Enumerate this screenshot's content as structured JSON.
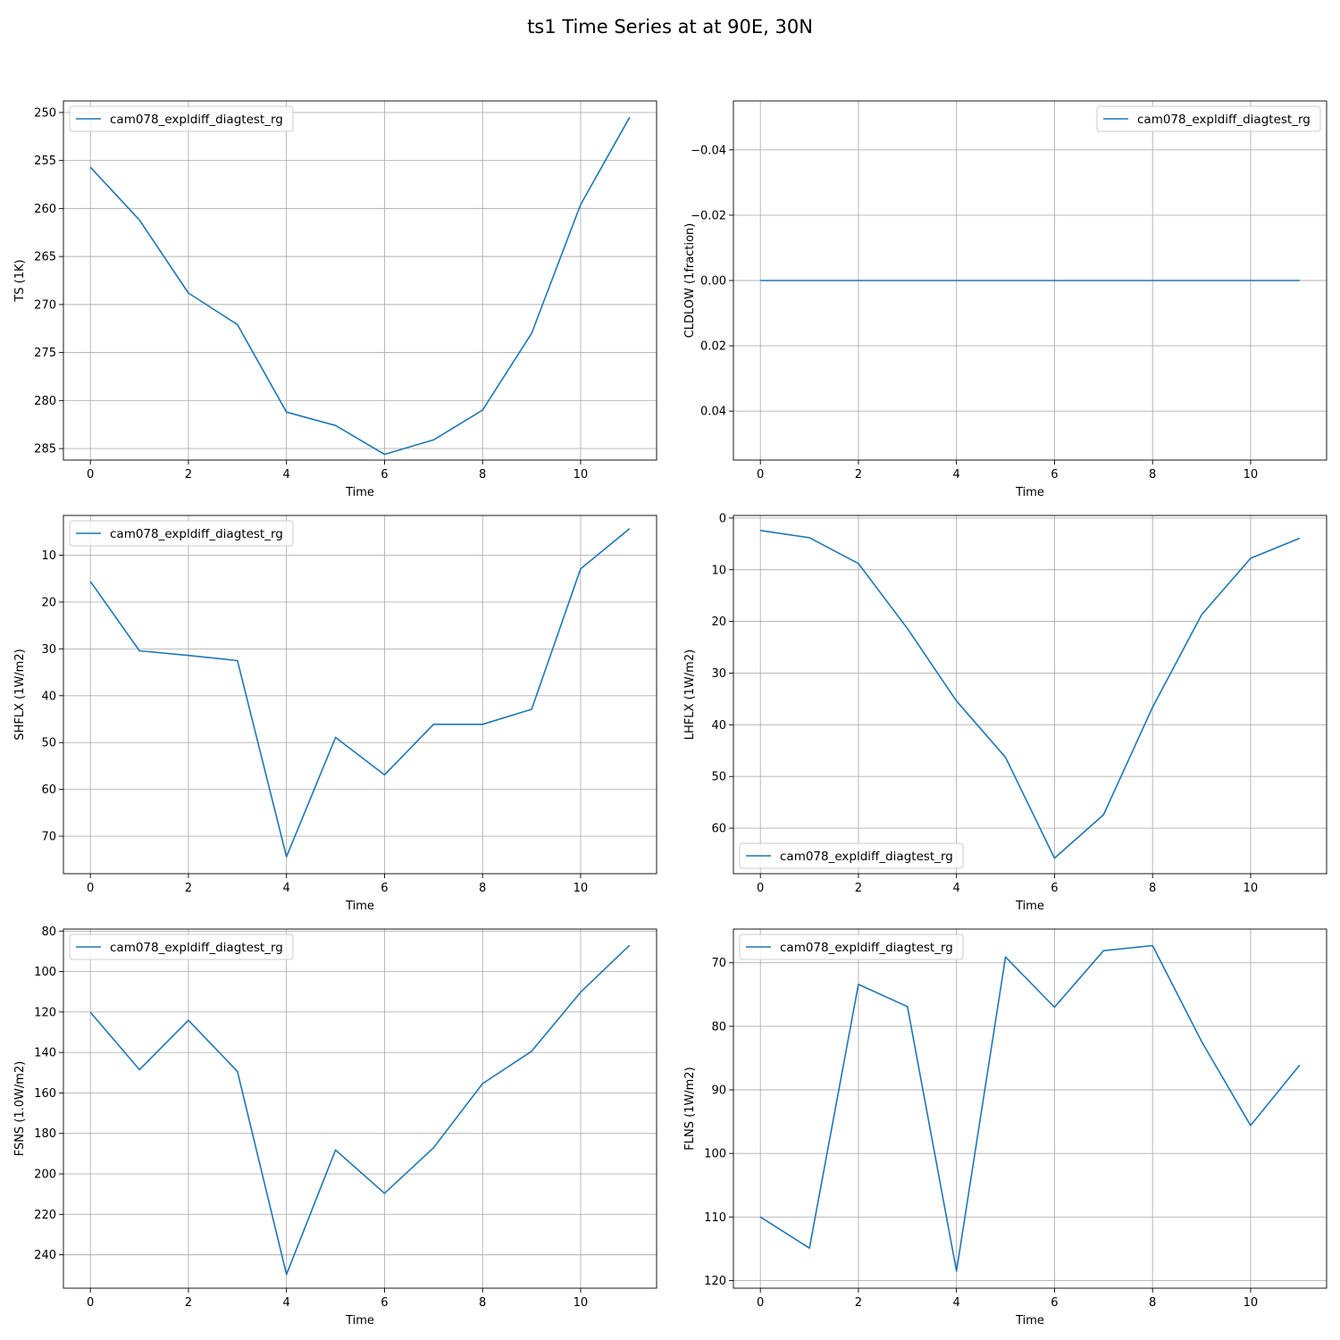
{
  "title": "ts1 Time Series at at 90E, 30N",
  "colors": {
    "series": "#1f77b4",
    "grid": "#b0b0b0",
    "axis": "#000000",
    "legend_border": "#cccccc"
  },
  "chart_data": [
    {
      "type": "line",
      "xlabel": "Time",
      "ylabel": "TS (1K)",
      "xlim": [
        -0.55,
        11.55
      ],
      "ylim": [
        286.2,
        248.8
      ],
      "y_inverted": true,
      "grid": true,
      "legend_position": "upper left",
      "xticks": [
        0,
        2,
        4,
        6,
        8,
        10
      ],
      "yticks": [
        250,
        255,
        260,
        265,
        270,
        275,
        280,
        285
      ],
      "series": [
        {
          "name": "cam078_expldiff_diagtest_rg",
          "x": [
            0,
            1,
            2,
            3,
            4,
            5,
            6,
            7,
            8,
            9,
            10,
            11
          ],
          "y": [
            255.7,
            261.2,
            268.8,
            272.1,
            281.2,
            282.6,
            285.6,
            284.1,
            281.0,
            273.0,
            259.6,
            250.5
          ]
        }
      ]
    },
    {
      "type": "line",
      "xlabel": "Time",
      "ylabel": "CLDLOW (1fraction)",
      "xlim": [
        -0.55,
        11.55
      ],
      "ylim": [
        0.055,
        -0.055
      ],
      "y_inverted": true,
      "grid": true,
      "legend_position": "upper right",
      "xticks": [
        0,
        2,
        4,
        6,
        8,
        10
      ],
      "yticks": [
        -0.04,
        -0.02,
        0.0,
        0.02,
        0.04
      ],
      "ytick_labels": [
        "−0.04",
        "−0.02",
        "0.00",
        "0.02",
        "0.04"
      ],
      "series": [
        {
          "name": "cam078_expldiff_diagtest_rg",
          "x": [
            0,
            1,
            2,
            3,
            4,
            5,
            6,
            7,
            8,
            9,
            10,
            11
          ],
          "y": [
            0,
            0,
            0,
            0,
            0,
            0,
            0,
            0,
            0,
            0,
            0,
            0
          ]
        }
      ]
    },
    {
      "type": "line",
      "xlabel": "Time",
      "ylabel": "SHFLX (1W/m2)",
      "xlim": [
        -0.55,
        11.55
      ],
      "ylim": [
        78.0,
        1.5
      ],
      "y_inverted": true,
      "grid": true,
      "legend_position": "upper left",
      "xticks": [
        0,
        2,
        4,
        6,
        8,
        10
      ],
      "yticks": [
        10,
        20,
        30,
        40,
        50,
        60,
        70
      ],
      "series": [
        {
          "name": "cam078_expldiff_diagtest_rg",
          "x": [
            0,
            1,
            2,
            3,
            4,
            5,
            6,
            7,
            8,
            9,
            10,
            11
          ],
          "y": [
            15.6,
            30.4,
            31.4,
            32.5,
            74.4,
            48.9,
            56.9,
            46.1,
            46.1,
            42.9,
            12.9,
            4.3
          ]
        }
      ]
    },
    {
      "type": "line",
      "xlabel": "Time",
      "ylabel": "LHFLX (1W/m2)",
      "xlim": [
        -0.55,
        11.55
      ],
      "ylim": [
        68.8,
        -0.5
      ],
      "y_inverted": true,
      "grid": true,
      "legend_position": "lower left",
      "xticks": [
        0,
        2,
        4,
        6,
        8,
        10
      ],
      "yticks": [
        0,
        10,
        20,
        30,
        40,
        50,
        60
      ],
      "series": [
        {
          "name": "cam078_expldiff_diagtest_rg",
          "x": [
            0,
            1,
            2,
            3,
            4,
            5,
            6,
            7,
            8,
            9,
            10,
            11
          ],
          "y": [
            2.4,
            3.8,
            8.8,
            21.4,
            35.4,
            46.3,
            65.8,
            57.4,
            36.6,
            18.7,
            7.8,
            3.9
          ]
        }
      ]
    },
    {
      "type": "line",
      "xlabel": "Time",
      "ylabel": "FSNS (1.0W/m2)",
      "xlim": [
        -0.55,
        11.55
      ],
      "ylim": [
        256.5,
        79.0
      ],
      "y_inverted": true,
      "grid": true,
      "legend_position": "upper left",
      "xticks": [
        0,
        2,
        4,
        6,
        8,
        10
      ],
      "yticks": [
        80,
        100,
        120,
        140,
        160,
        180,
        200,
        220,
        240
      ],
      "series": [
        {
          "name": "cam078_expldiff_diagtest_rg",
          "x": [
            0,
            1,
            2,
            3,
            4,
            5,
            6,
            7,
            8,
            9,
            10,
            11
          ],
          "y": [
            120.1,
            148.5,
            124.1,
            149.4,
            249.7,
            188.2,
            209.6,
            187.1,
            155.4,
            139.4,
            110.2,
            87.0
          ]
        }
      ]
    },
    {
      "type": "line",
      "xlabel": "Time",
      "ylabel": "FLNS (1W/m2)",
      "xlim": [
        -0.55,
        11.55
      ],
      "ylim": [
        121.2,
        64.7
      ],
      "y_inverted": true,
      "grid": true,
      "legend_position": "upper left",
      "xticks": [
        0,
        2,
        4,
        6,
        8,
        10
      ],
      "yticks": [
        70,
        80,
        90,
        100,
        110,
        120
      ],
      "series": [
        {
          "name": "cam078_expldiff_diagtest_rg",
          "x": [
            0,
            1,
            2,
            3,
            4,
            5,
            6,
            7,
            8,
            9,
            10,
            11
          ],
          "y": [
            110.0,
            114.9,
            73.4,
            76.9,
            118.5,
            69.1,
            77.0,
            68.1,
            67.3,
            82.4,
            95.6,
            86.1
          ]
        }
      ]
    }
  ]
}
